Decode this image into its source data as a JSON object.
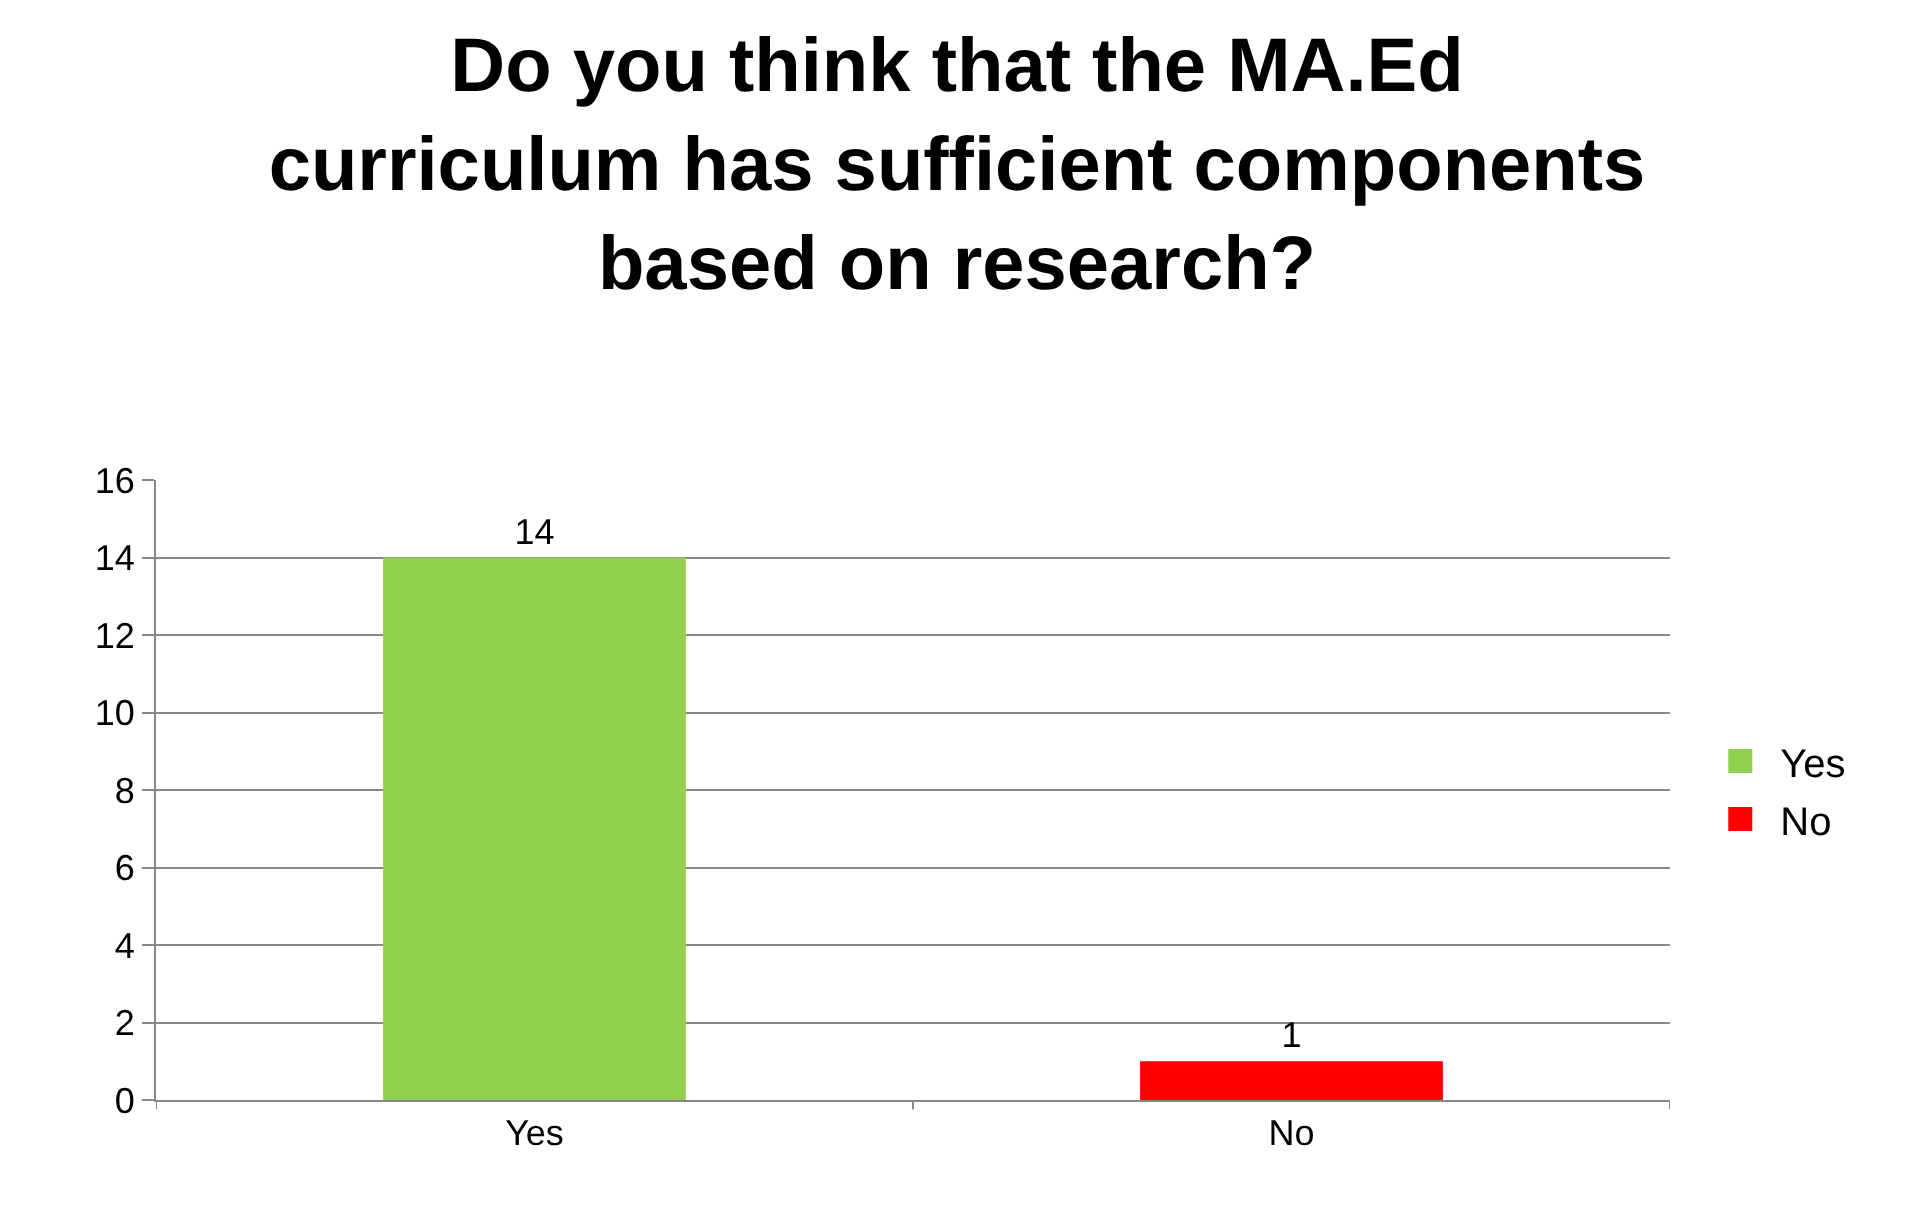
{
  "chart_data": {
    "type": "bar",
    "title": "Do you think that the MA.Ed curriculum has sufficient components based on research?",
    "categories": [
      "Yes",
      "No"
    ],
    "series": [
      {
        "name": "Yes",
        "color": "#92d050",
        "values": [
          14,
          null
        ]
      },
      {
        "name": "No",
        "color": "#ff0000",
        "values": [
          null,
          1
        ]
      }
    ],
    "ylim": [
      0,
      16
    ],
    "yticks": [
      0,
      2,
      4,
      6,
      8,
      10,
      12,
      14,
      16
    ],
    "grid": "y",
    "legend": "right",
    "data_labels": true
  }
}
